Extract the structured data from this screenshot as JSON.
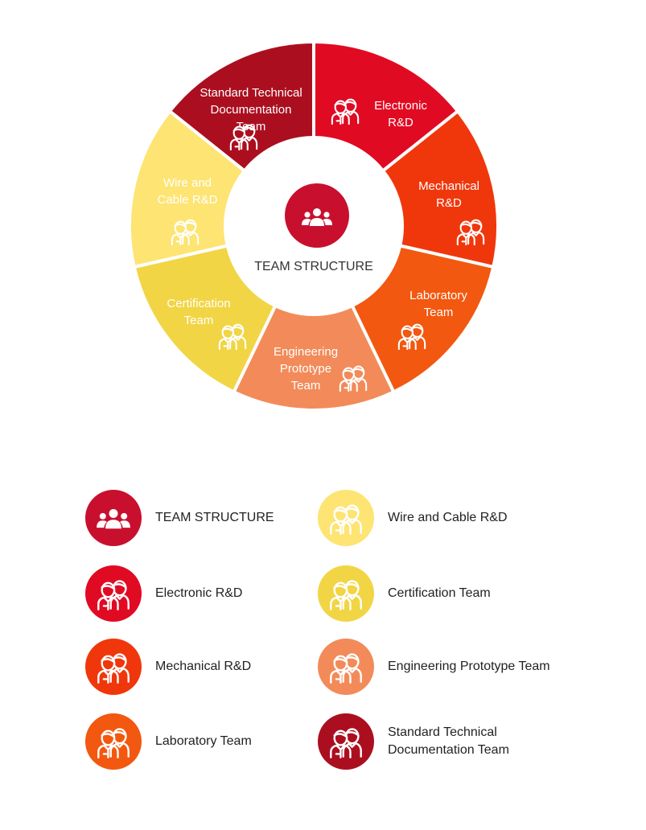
{
  "center": {
    "title": "TEAM STRUCTURE",
    "color": "#c8102e",
    "icon": "group-icon"
  },
  "segments": [
    {
      "id": "electronic",
      "label": [
        "Electronic",
        "R&D"
      ],
      "color": "#e10a23",
      "icon": "team-members-icon"
    },
    {
      "id": "mechanical",
      "label": [
        "Mechanical",
        "R&D"
      ],
      "color": "#f0370c",
      "icon": "team-members-icon"
    },
    {
      "id": "laboratory",
      "label": [
        "Laboratory",
        "Team"
      ],
      "color": "#f2580f",
      "icon": "team-members-icon"
    },
    {
      "id": "engineering-prototype",
      "label": [
        "Engineering",
        "Prototype",
        "Team"
      ],
      "color": "#f28b59",
      "icon": "team-members-icon"
    },
    {
      "id": "certification",
      "label": [
        "Certification",
        "Team"
      ],
      "color": "#f2d544",
      "icon": "team-members-icon"
    },
    {
      "id": "wire-and-cable",
      "label": [
        "Wire and",
        "Cable R&D"
      ],
      "color": "#fde473",
      "icon": "team-members-icon"
    },
    {
      "id": "standard-technical-documentation",
      "label": [
        "Standard Technical",
        "Documentation",
        "Team"
      ],
      "color": "#ab0f1f",
      "icon": "team-members-icon"
    }
  ],
  "legend": [
    {
      "text": "TEAM STRUCTURE",
      "color": "#c8102e",
      "icon": "group-icon"
    },
    {
      "text": "Electronic R&D",
      "color": "#e10a23",
      "icon": "team-members-icon"
    },
    {
      "text": "Mechanical R&D",
      "color": "#f0370c",
      "icon": "team-members-icon"
    },
    {
      "text": "Laboratory Team",
      "color": "#f2580f",
      "icon": "team-members-icon"
    },
    {
      "text": "Wire and Cable R&D",
      "color": "#fde473",
      "icon": "team-members-icon"
    },
    {
      "text": "Certification Team",
      "color": "#f2d544",
      "icon": "team-members-icon"
    },
    {
      "text": "Engineering Prototype Team",
      "color": "#f28b59",
      "icon": "team-members-icon"
    },
    {
      "text": "Standard Technical Documentation Team",
      "color": "#ab0f1f",
      "icon": "team-members-icon"
    }
  ]
}
